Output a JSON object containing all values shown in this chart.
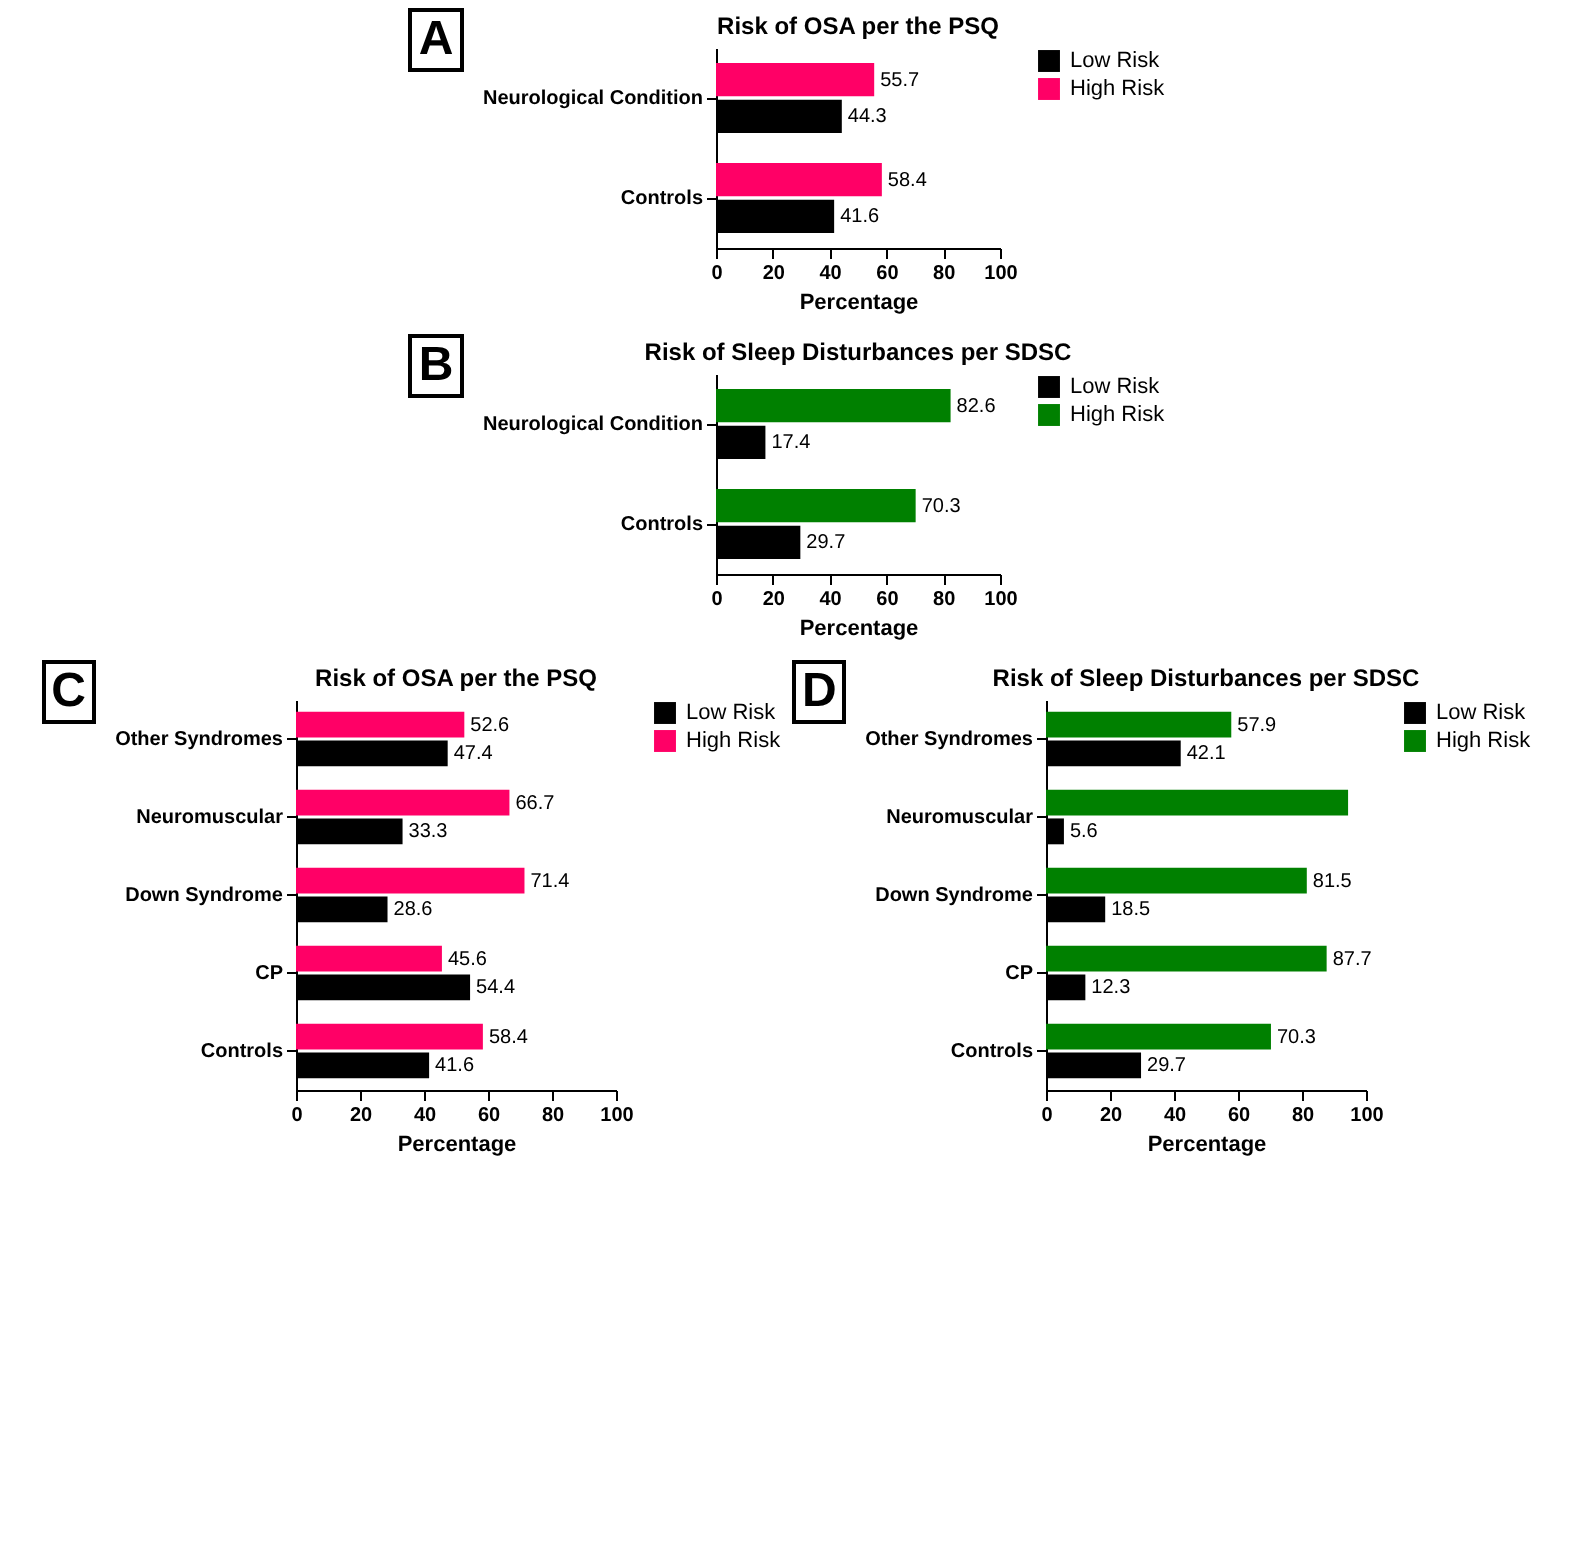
{
  "chart_data": [
    {
      "type": "bar",
      "orientation": "horizontal",
      "title": "Risk of OSA per the PSQ",
      "xlabel": "Percentage",
      "annotations": [
        "A"
      ],
      "categories": [
        "Neurological Condition",
        "Controls"
      ],
      "series": [
        {
          "name": "Low Risk",
          "color": "#000000",
          "values": [
            44.3,
            41.6
          ],
          "value_labels": [
            "44.3",
            "41.6"
          ]
        },
        {
          "name": "High Risk",
          "color": "#ff0066",
          "values": [
            55.7,
            58.4
          ],
          "value_labels": [
            "55.7",
            "58.4"
          ]
        }
      ],
      "xlim": [
        0,
        100
      ],
      "xticks": [
        0,
        20,
        40,
        60,
        80,
        100
      ],
      "grid": false,
      "legend": "right"
    },
    {
      "type": "bar",
      "orientation": "horizontal",
      "title": "Risk of Sleep Disturbances per SDSC",
      "xlabel": "Percentage",
      "annotations": [
        "B"
      ],
      "categories": [
        "Neurological Condition",
        "Controls"
      ],
      "series": [
        {
          "name": "Low Risk",
          "color": "#000000",
          "values": [
            17.4,
            29.7
          ],
          "value_labels": [
            "17.4",
            "29.7"
          ]
        },
        {
          "name": "High Risk",
          "color": "#008000",
          "values": [
            82.6,
            70.3
          ],
          "value_labels": [
            "82.6",
            "70.3"
          ]
        }
      ],
      "xlim": [
        0,
        100
      ],
      "xticks": [
        0,
        20,
        40,
        60,
        80,
        100
      ],
      "grid": false,
      "legend": "right"
    },
    {
      "type": "bar",
      "orientation": "horizontal",
      "title": "Risk of OSA per the PSQ",
      "xlabel": "Percentage",
      "annotations": [
        "C"
      ],
      "categories": [
        "Other Syndromes",
        "Neuromuscular",
        "Down Syndrome",
        "CP",
        "Controls"
      ],
      "series": [
        {
          "name": "Low Risk",
          "color": "#000000",
          "values": [
            47.4,
            33.3,
            28.6,
            54.4,
            41.6
          ],
          "value_labels": [
            "47.4",
            "33.3",
            "28.6",
            "54.4",
            "41.6"
          ]
        },
        {
          "name": "High Risk",
          "color": "#ff0066",
          "values": [
            52.6,
            66.7,
            71.4,
            45.6,
            58.4
          ],
          "value_labels": [
            "52.6",
            "66.7",
            "71.4",
            "45.6",
            "58.4"
          ]
        }
      ],
      "xlim": [
        0,
        100
      ],
      "xticks": [
        0,
        20,
        40,
        60,
        80,
        100
      ],
      "grid": false,
      "legend": "right"
    },
    {
      "type": "bar",
      "orientation": "horizontal",
      "title": "Risk of Sleep Disturbances per SDSC",
      "xlabel": "Percentage",
      "annotations": [
        "D"
      ],
      "categories": [
        "Other Syndromes",
        "Neuromuscular",
        "Down Syndrome",
        "CP",
        "Controls"
      ],
      "series": [
        {
          "name": "Low Risk",
          "color": "#000000",
          "values": [
            42.1,
            5.6,
            18.5,
            12.3,
            29.7
          ],
          "value_labels": [
            "42.1",
            "5.6",
            "18.5",
            "12.3",
            "29.7"
          ]
        },
        {
          "name": "High Risk",
          "color": "#008000",
          "values": [
            57.9,
            94.4,
            81.5,
            87.7,
            70.3
          ],
          "value_labels": [
            "57.9",
            null,
            "81.5",
            "87.7",
            "70.3"
          ]
        }
      ],
      "xlim": [
        0,
        100
      ],
      "xticks": [
        0,
        20,
        40,
        60,
        80,
        100
      ],
      "grid": false,
      "legend": "right"
    }
  ]
}
